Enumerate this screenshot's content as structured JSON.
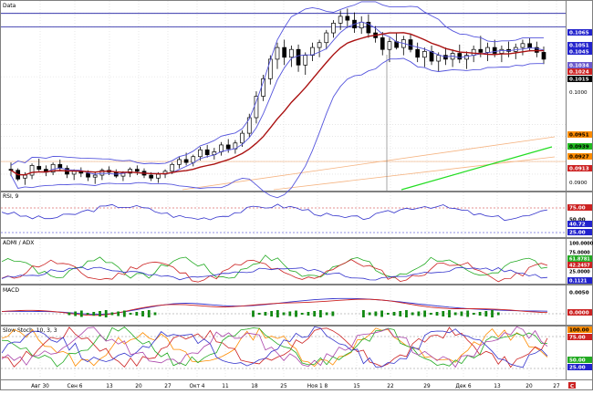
{
  "chart_data": [
    {
      "type": "candlestick",
      "panel_label": "Data",
      "price_tags": [
        {
          "text": "0.1065",
          "bg": "#2222cc",
          "fg": "#ffffff"
        },
        {
          "text": "0.1051",
          "bg": "#2222cc",
          "fg": "#ffffff"
        },
        {
          "text": "0.1045",
          "bg": "#2222cc",
          "fg": "#ffffff"
        },
        {
          "text": "0.1034",
          "bg": "#6a5acd",
          "fg": "#ffffff"
        },
        {
          "text": "0.1024",
          "bg": "#cc2222",
          "fg": "#ffffff"
        },
        {
          "text": "0.1015",
          "bg": "#000000",
          "fg": "#ffffff"
        },
        {
          "text": "0.0951",
          "bg": "#ff8c00",
          "fg": "#000000"
        },
        {
          "text": "0.0939",
          "bg": "#22bb22",
          "fg": "#000000"
        },
        {
          "text": "0.0927",
          "bg": "#ff8c00",
          "fg": "#000000"
        },
        {
          "text": "0.0913",
          "bg": "#cc2222",
          "fg": "#ffffff"
        }
      ],
      "y_ticks": [
        "0.1065",
        "0.1000",
        "0.0900"
      ],
      "x_ticks": [
        "Авг 30",
        "Сен 6",
        "13",
        "20",
        "27",
        "Окт 4",
        "11",
        "18",
        "25",
        "Ноя 1 8",
        "15",
        "22",
        "29",
        "Дек 6",
        "13",
        "20",
        "27"
      ],
      "x_marker": "C",
      "ohlc": [
        [
          0.0905,
          0.0912,
          0.0898,
          0.0904
        ],
        [
          0.0904,
          0.0906,
          0.0893,
          0.0895
        ],
        [
          0.0896,
          0.0902,
          0.0889,
          0.0899
        ],
        [
          0.0899,
          0.0911,
          0.0895,
          0.0909
        ],
        [
          0.0908,
          0.0916,
          0.0903,
          0.0905
        ],
        [
          0.0905,
          0.0909,
          0.0898,
          0.0902
        ],
        [
          0.0902,
          0.0912,
          0.0899,
          0.091
        ],
        [
          0.091,
          0.0915,
          0.0903,
          0.0906
        ],
        [
          0.0906,
          0.0909,
          0.0896,
          0.09
        ],
        [
          0.09,
          0.0905,
          0.0894,
          0.0903
        ],
        [
          0.0903,
          0.0907,
          0.0897,
          0.0901
        ],
        [
          0.0901,
          0.0904,
          0.0893,
          0.0897
        ],
        [
          0.0897,
          0.0902,
          0.089,
          0.0899
        ],
        [
          0.0899,
          0.0906,
          0.0894,
          0.0904
        ],
        [
          0.0904,
          0.0908,
          0.0899,
          0.0902
        ],
        [
          0.0902,
          0.0905,
          0.0896,
          0.0898
        ],
        [
          0.0898,
          0.0903,
          0.0893,
          0.0901
        ],
        [
          0.0901,
          0.0907,
          0.0897,
          0.0905
        ],
        [
          0.0905,
          0.0909,
          0.0899,
          0.0903
        ],
        [
          0.0903,
          0.0906,
          0.0896,
          0.0899
        ],
        [
          0.0899,
          0.0902,
          0.0893,
          0.0896
        ],
        [
          0.0896,
          0.0902,
          0.0891,
          0.09
        ],
        [
          0.09,
          0.0905,
          0.0896,
          0.0903
        ],
        [
          0.0903,
          0.0912,
          0.09,
          0.091
        ],
        [
          0.091,
          0.0918,
          0.0906,
          0.0915
        ],
        [
          0.0915,
          0.0922,
          0.0909,
          0.0912
        ],
        [
          0.0912,
          0.092,
          0.0908,
          0.0918
        ],
        [
          0.0918,
          0.0928,
          0.0914,
          0.0925
        ],
        [
          0.0925,
          0.093,
          0.0917,
          0.092
        ],
        [
          0.092,
          0.0927,
          0.0915,
          0.0923
        ],
        [
          0.0923,
          0.0933,
          0.0919,
          0.093
        ],
        [
          0.093,
          0.0936,
          0.0922,
          0.0926
        ],
        [
          0.0926,
          0.0935,
          0.0921,
          0.0932
        ],
        [
          0.0932,
          0.0945,
          0.0928,
          0.0942
        ],
        [
          0.0942,
          0.0962,
          0.0938,
          0.0958
        ],
        [
          0.0958,
          0.0985,
          0.0952,
          0.098
        ],
        [
          0.098,
          0.1002,
          0.0975,
          0.0998
        ],
        [
          0.0998,
          0.1022,
          0.0992,
          0.1018
        ],
        [
          0.1018,
          0.1035,
          0.1008,
          0.103
        ],
        [
          0.103,
          0.1038,
          0.1012,
          0.102
        ],
        [
          0.102,
          0.1032,
          0.101,
          0.1028
        ],
        [
          0.1028,
          0.1033,
          0.1005,
          0.1012
        ],
        [
          0.1012,
          0.1025,
          0.1002,
          0.1022
        ],
        [
          0.1022,
          0.1035,
          0.1016,
          0.103
        ],
        [
          0.103,
          0.1038,
          0.102,
          0.1035
        ],
        [
          0.1035,
          0.1048,
          0.1028,
          0.1045
        ],
        [
          0.1045,
          0.1058,
          0.104,
          0.1055
        ],
        [
          0.1055,
          0.1068,
          0.1048,
          0.1062
        ],
        [
          0.1062,
          0.107,
          0.105,
          0.1058
        ],
        [
          0.1058,
          0.1066,
          0.1045,
          0.105
        ],
        [
          0.105,
          0.1062,
          0.1044,
          0.1056
        ],
        [
          0.1056,
          0.1064,
          0.104,
          0.1045
        ],
        [
          0.1045,
          0.1052,
          0.1035,
          0.104
        ],
        [
          0.104,
          0.1046,
          0.1022,
          0.1028
        ],
        [
          0.1028,
          0.104,
          0.1015,
          0.1036
        ],
        [
          0.1036,
          0.1045,
          0.1028,
          0.103
        ],
        [
          0.103,
          0.1042,
          0.1022,
          0.1038
        ],
        [
          0.1038,
          0.1044,
          0.1025,
          0.1028
        ],
        [
          0.1028,
          0.1035,
          0.1015,
          0.102
        ],
        [
          0.102,
          0.103,
          0.101,
          0.1026
        ],
        [
          0.1026,
          0.1032,
          0.1012,
          0.1016
        ],
        [
          0.1016,
          0.1025,
          0.1005,
          0.1022
        ],
        [
          0.1022,
          0.103,
          0.1012,
          0.1018
        ],
        [
          0.1018,
          0.1028,
          0.101,
          0.1024
        ],
        [
          0.1024,
          0.1033,
          0.1014,
          0.1018
        ],
        [
          0.1018,
          0.1026,
          0.1008,
          0.1022
        ],
        [
          0.1022,
          0.1032,
          0.1015,
          0.1028
        ],
        [
          0.1028,
          0.1042,
          0.102,
          0.1025
        ],
        [
          0.1025,
          0.1035,
          0.1016,
          0.103
        ],
        [
          0.103,
          0.1038,
          0.102,
          0.1024
        ],
        [
          0.1024,
          0.1032,
          0.1015,
          0.1028
        ],
        [
          0.1028,
          0.1036,
          0.102,
          0.1026
        ],
        [
          0.1026,
          0.1034,
          0.1018,
          0.103
        ],
        [
          0.103,
          0.1038,
          0.1022,
          0.1034
        ],
        [
          0.1034,
          0.104,
          0.1026,
          0.103
        ],
        [
          0.103,
          0.1036,
          0.102,
          0.1025
        ],
        [
          0.1025,
          0.1031,
          0.1013,
          0.1018
        ]
      ]
    },
    {
      "type": "line",
      "panel_label": "RSI, 9",
      "y_ticks": [
        "75.00",
        "50.00",
        "25.00"
      ],
      "tags": [
        {
          "text": "75.00",
          "bg": "#cc2222",
          "fg": "#ffffff"
        },
        {
          "text": "50.00",
          "bg": "#ffffff",
          "fg": "#000000"
        },
        {
          "text": "40.72",
          "bg": "#2222cc",
          "fg": "#ffffff"
        },
        {
          "text": "25.00",
          "bg": "#2222cc",
          "fg": "#ffffff"
        }
      ]
    },
    {
      "type": "line",
      "panel_label": "ADMI / ADX",
      "y_ticks": [
        "100.0000",
        "75.0000",
        "25.0000"
      ],
      "tags": [
        {
          "text": "100.0000",
          "bg": "#ffffff",
          "fg": "#000000"
        },
        {
          "text": "75.0000",
          "bg": "#ffffff",
          "fg": "#000000"
        },
        {
          "text": "61.8781",
          "bg": "#22aa22",
          "fg": "#ffffff"
        },
        {
          "text": "42.2457",
          "bg": "#cc2222",
          "fg": "#ffffff"
        },
        {
          "text": "25.0000",
          "bg": "#ffffff",
          "fg": "#000000"
        },
        {
          "text": "0.1121",
          "bg": "#2222cc",
          "fg": "#ffffff"
        }
      ]
    },
    {
      "type": "bar",
      "panel_label": "MACD",
      "y_ticks": [
        "0.0050",
        "0.0000"
      ],
      "tags": [
        {
          "text": "0.0050",
          "bg": "#ffffff",
          "fg": "#000000"
        },
        {
          "text": "0.0000",
          "bg": "#cc2222",
          "fg": "#ffffff"
        }
      ]
    },
    {
      "type": "line",
      "panel_label": "Slow Stoch, 10, 3, 3",
      "y_ticks": [
        "100.00",
        "75.00",
        "50.00",
        "25.00"
      ],
      "tags": [
        {
          "text": "100.00",
          "bg": "#ff8c00",
          "fg": "#000000"
        },
        {
          "text": "75.00",
          "bg": "#cc2222",
          "fg": "#ffffff"
        },
        {
          "text": "50.00",
          "bg": "#22aa22",
          "fg": "#ffffff"
        },
        {
          "text": "25.00",
          "bg": "#2222cc",
          "fg": "#ffffff"
        }
      ]
    }
  ],
  "colors": {
    "blue": "#3333cc",
    "red": "#cc2222",
    "green": "#22aa22",
    "orange": "#ff8c00",
    "purple": "#7b68ee",
    "grid": "#d8d8d8",
    "dark": "#000000"
  }
}
